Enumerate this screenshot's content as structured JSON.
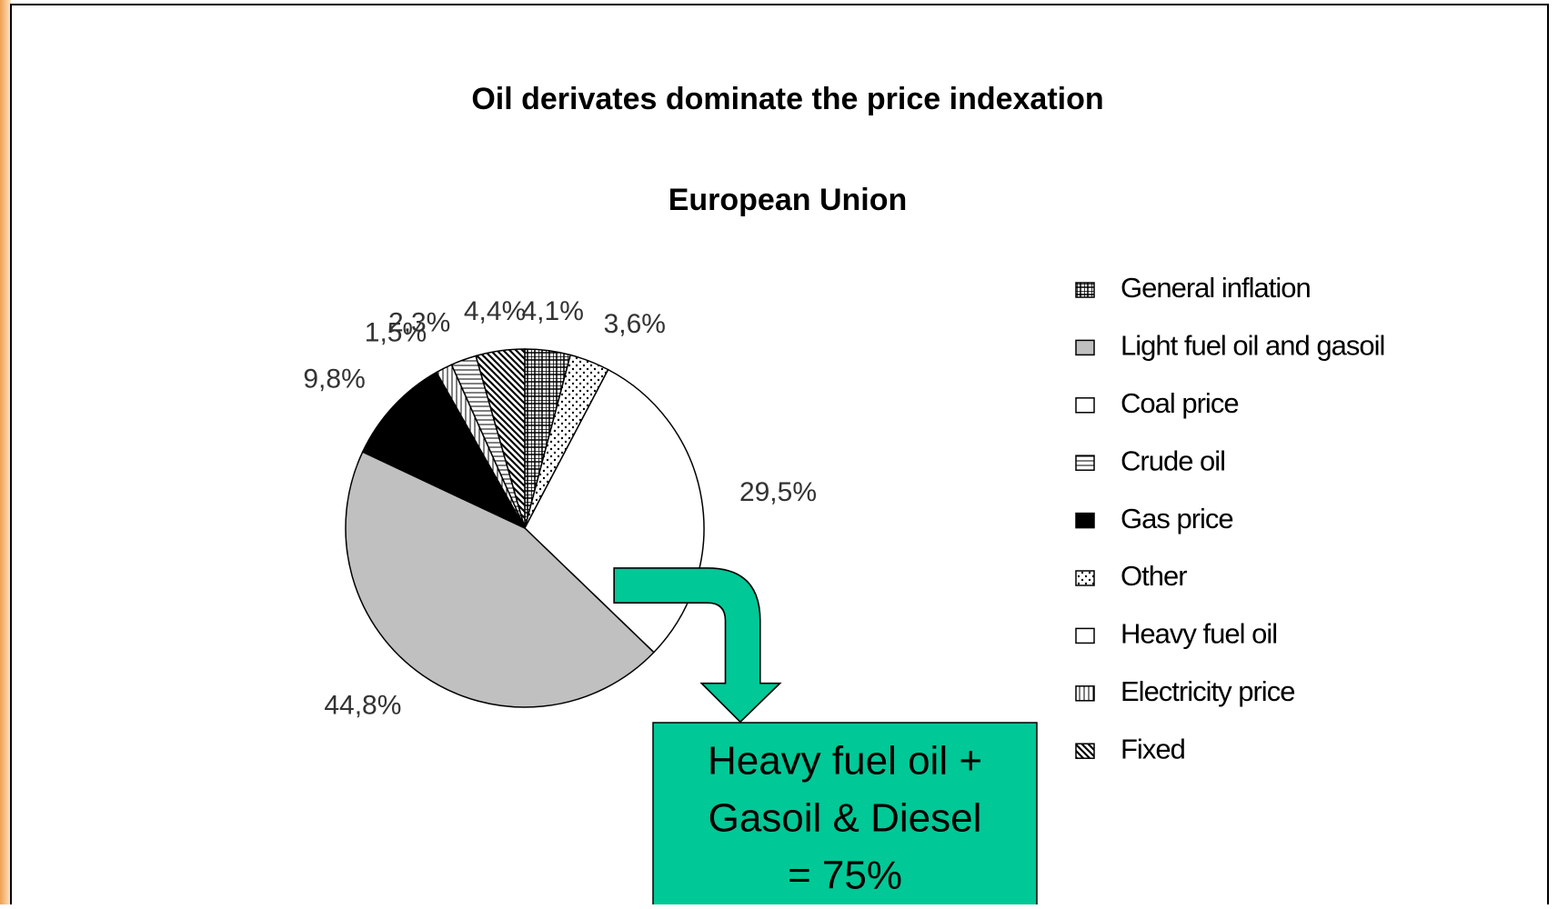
{
  "chart_data": {
    "type": "pie",
    "title": "Oil derivates dominate the price indexation",
    "subtitle": "European Union",
    "categories": [
      "General inflation",
      "Other",
      "Heavy fuel oil",
      "Light fuel oil and gasoil",
      "Gas price",
      "Electricity price",
      "Crude oil",
      "Fixed",
      "Coal price"
    ],
    "values": [
      4.1,
      3.6,
      29.5,
      44.8,
      9.8,
      1.5,
      2.3,
      4.4,
      null
    ],
    "value_labels": [
      "4,1%",
      "3,6%",
      "29,5%",
      "44,8%",
      "9,8%",
      "1,5%",
      "2,3%",
      "4,4%",
      null
    ],
    "fills": [
      "grid",
      "dots",
      "white",
      "gray",
      "black",
      "vlines",
      "hlines",
      "diagonal",
      "white"
    ],
    "legend": [
      "General inflation",
      "Light fuel oil and gasoil",
      "Coal price",
      "Crude oil",
      "Gas price",
      "Other",
      "Heavy fuel oil",
      "Electricity price",
      "Fixed"
    ],
    "annotation": [
      "Heavy fuel oil +",
      "Gasoil & Diesel",
      "= 75%"
    ],
    "annotation_color": "#00c896"
  }
}
